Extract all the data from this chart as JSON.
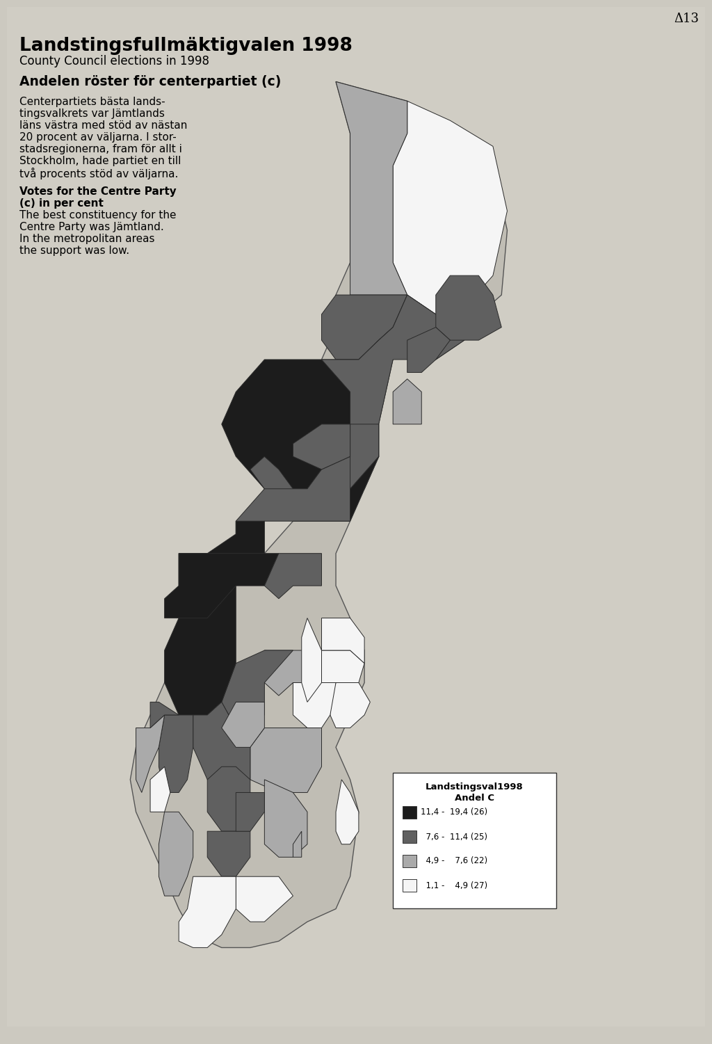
{
  "page_number": "Δ13",
  "bg_color": "#ccc9c0",
  "content_bg": "#d0cdc4",
  "title": "Landstingsfullmäktigvalen 1998",
  "subtitle": "County Council elections in 1998",
  "section_title": "Andelen röster för centerpartiet (c)",
  "swedish_para": [
    "Centerpartiets bästa lands-",
    "tingsvalkrets var Jämtlands",
    "läns västra med stöd av nästan",
    "20 procent av väljarna. I stor-",
    "stadsregionerna, fram för allt i",
    "Stockholm, hade partiet en till",
    "två procents stöd av väljarna."
  ],
  "english_bold": [
    "Votes for the Centre Party",
    "(c) in per cent"
  ],
  "english_para": [
    "The best constituency for the",
    "Centre Party was Jämtland.",
    "In the metropolitan areas",
    "the support was low."
  ],
  "legend_title1": "Landstingsval1998",
  "legend_title2": "Andel C",
  "legend_entries": [
    {
      "label": "11,4 -  19,4 (26)",
      "color": "#1c1c1c"
    },
    {
      "label": "  7,6 -  11,4 (25)",
      "color": "#606060"
    },
    {
      "label": "  4,9 -    7,6 (22)",
      "color": "#aaaaaa"
    },
    {
      "label": "  1,1 -    4,9 (27)",
      "color": "#f5f5f5"
    }
  ],
  "map_bg": "#c8c5bc",
  "darkest": "#1c1c1c",
  "dark": "#606060",
  "medium": "#aaaaaa",
  "light": "#f5f5f5",
  "outline": "#2a2a2a"
}
